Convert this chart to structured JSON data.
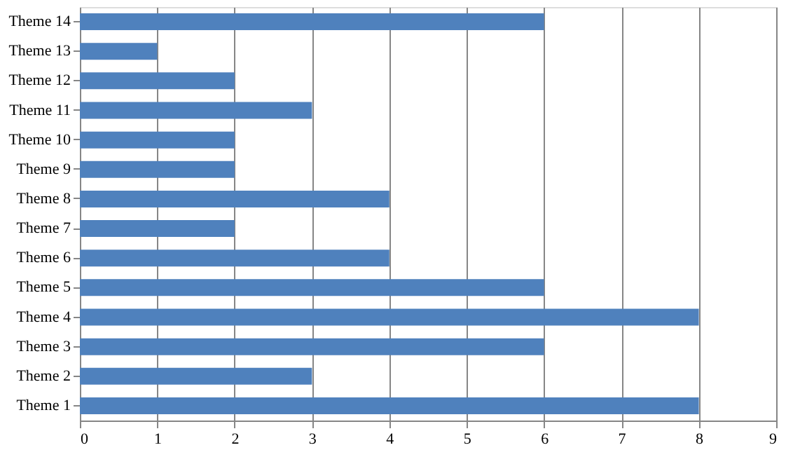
{
  "chart_data": {
    "type": "bar",
    "orientation": "horizontal",
    "categories": [
      "Theme 14",
      "Theme 13",
      "Theme 12",
      "Theme 11",
      "Theme 10",
      "Theme 9",
      "Theme 8",
      "Theme 7",
      "Theme 6",
      "Theme 5",
      "Theme 4",
      "Theme 3",
      "Theme 2",
      "Theme 1"
    ],
    "values": [
      6,
      1,
      2,
      3,
      2,
      2,
      4,
      2,
      4,
      6,
      8,
      6,
      3,
      8
    ],
    "color": "#4f81bd",
    "xlim": [
      0,
      9
    ],
    "xticks": [
      0,
      1,
      2,
      3,
      4,
      5,
      6,
      7,
      8,
      9
    ],
    "grid": "x"
  }
}
